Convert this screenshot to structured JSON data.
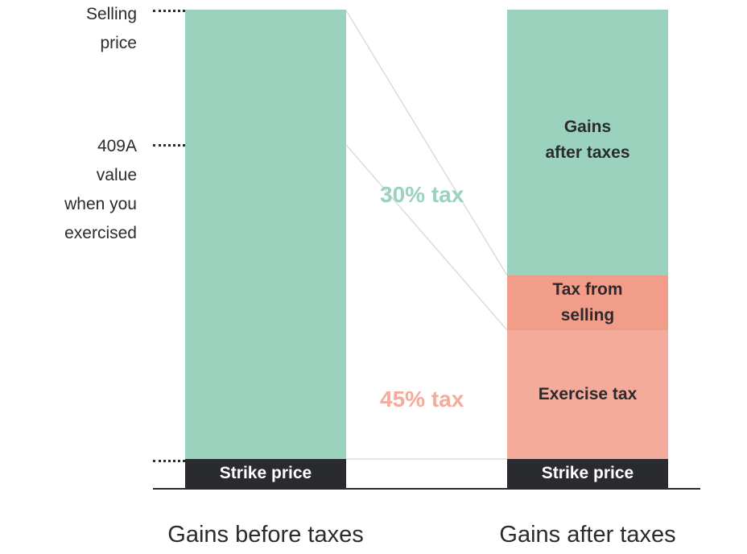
{
  "left_labels": {
    "selling_price": [
      "Selling",
      "price"
    ],
    "value_409a": [
      "409A",
      "value",
      "when you",
      "exercised"
    ]
  },
  "left_bar": {
    "strike_label": "Strike price"
  },
  "right_bar": {
    "gains_label": [
      "Gains",
      "after taxes"
    ],
    "tax_selling_label": [
      "Tax from",
      "selling"
    ],
    "exercise_tax_label": "Exercise tax",
    "strike_label": "Strike price"
  },
  "annotations": {
    "selling_tax": "30% tax",
    "exercise_tax": "45% tax"
  },
  "axis": {
    "left_category": "Gains before taxes",
    "right_category": "Gains after taxes"
  },
  "colors": {
    "gains": "#9ad2be",
    "tax_selling": "#f29d8a",
    "exercise_tax": "#f4ab9c",
    "strike": "#2a2b2f",
    "selling_tax_text": "#9ad2be",
    "exercise_tax_text": "#f4ab9c"
  }
}
